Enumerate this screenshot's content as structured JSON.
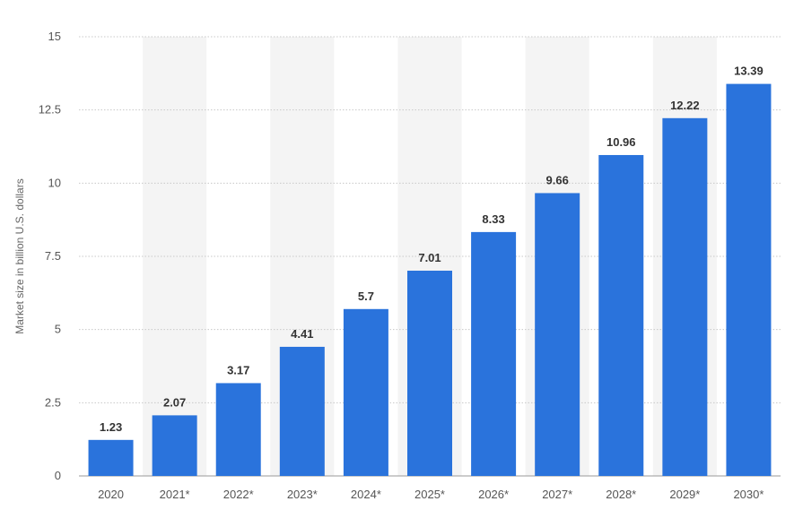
{
  "chart_data": {
    "type": "bar",
    "categories": [
      "2020",
      "2021*",
      "2022*",
      "2023*",
      "2024*",
      "2025*",
      "2026*",
      "2027*",
      "2028*",
      "2029*",
      "2030*"
    ],
    "values": [
      1.23,
      2.07,
      3.17,
      4.41,
      5.7,
      7.01,
      8.33,
      9.66,
      10.96,
      12.22,
      13.39
    ],
    "data_labels": [
      "1.23",
      "2.07",
      "3.17",
      "4.41",
      "5.7",
      "7.01",
      "8.33",
      "9.66",
      "10.96",
      "12.22",
      "13.39"
    ],
    "ylabel": "Market size in billion U.S. dollars",
    "xlabel": "",
    "ylim": [
      0,
      15
    ],
    "yticks": [
      0,
      2.5,
      5,
      7.5,
      10,
      12.5,
      15
    ],
    "ytick_labels": [
      "0",
      "2.5",
      "5",
      "7.5",
      "10",
      "12.5",
      "15"
    ],
    "grid": true,
    "colors": {
      "bar": "#2a73dc",
      "band": "#f4f4f4",
      "grid": "#c8c8c8"
    }
  }
}
